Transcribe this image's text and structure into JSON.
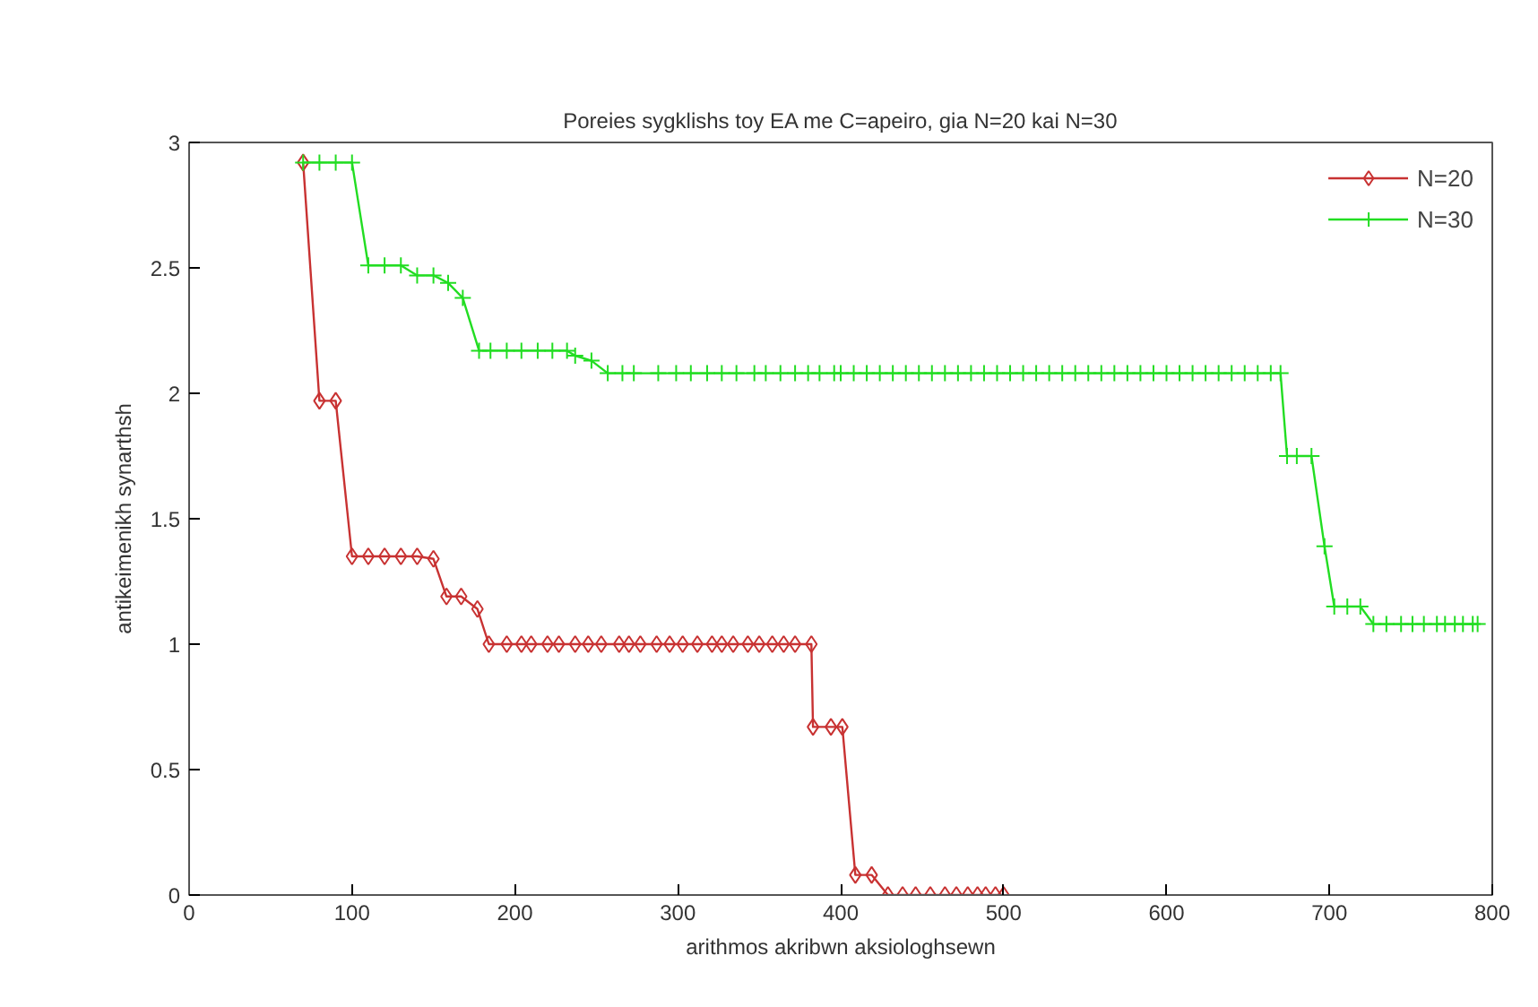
{
  "chart_data": {
    "type": "line",
    "title": "Poreies sygklishs toy EA me C=apeiro, gia N=20 kai N=30",
    "xlabel": "arithmos akribwn aksiologhsewn",
    "ylabel": "antikeimenikh synarthsh",
    "xlim": [
      0,
      800
    ],
    "ylim": [
      0,
      3
    ],
    "xticks": [
      0,
      100,
      200,
      300,
      400,
      500,
      600,
      700,
      800
    ],
    "yticks": [
      0,
      0.5,
      1,
      1.5,
      2,
      2.5,
      3
    ],
    "grid": false,
    "legend": "top right",
    "line_style": "solid",
    "series": [
      {
        "name": "N=20",
        "color": "#c83232",
        "marker": "diamond",
        "x": [
          70,
          80,
          90,
          100,
          110,
          120,
          130,
          140,
          150,
          158,
          167,
          177,
          184,
          195,
          204,
          210,
          220,
          227,
          237,
          245,
          253,
          264,
          270,
          277,
          287,
          295,
          303,
          312,
          321,
          327,
          334,
          343,
          350,
          358,
          365,
          372,
          382,
          383,
          394,
          401,
          409,
          419,
          429,
          438,
          446,
          455,
          464,
          471,
          478,
          484,
          489,
          495,
          500
        ],
        "values": [
          2.92,
          1.97,
          1.97,
          1.35,
          1.35,
          1.35,
          1.35,
          1.35,
          1.34,
          1.19,
          1.19,
          1.14,
          1.0,
          1.0,
          1.0,
          1.0,
          1.0,
          1.0,
          1.0,
          1.0,
          1.0,
          1.0,
          1.0,
          1.0,
          1.0,
          1.0,
          1.0,
          1.0,
          1.0,
          1.0,
          1.0,
          1.0,
          1.0,
          1.0,
          1.0,
          1.0,
          1.0,
          0.67,
          0.67,
          0.67,
          0.08,
          0.08,
          0,
          0,
          0,
          0,
          0,
          0,
          0,
          0,
          0,
          0,
          0
        ]
      },
      {
        "name": "N=30",
        "color": "#22dd22",
        "marker": "cross",
        "x": [
          70,
          80,
          90,
          100,
          110,
          120,
          130,
          140,
          150,
          159,
          168,
          178,
          185,
          195,
          204,
          214,
          223,
          232,
          237,
          247,
          257,
          266,
          273,
          288,
          299,
          308,
          318,
          327,
          336,
          347,
          354,
          363,
          372,
          380,
          387,
          396,
          400,
          408,
          416,
          424,
          432,
          440,
          448,
          456,
          464,
          472,
          480,
          488,
          496,
          504,
          512,
          520,
          528,
          536,
          544,
          552,
          560,
          568,
          576,
          584,
          592,
          600,
          608,
          616,
          624,
          632,
          640,
          648,
          656,
          664,
          670,
          674,
          680,
          689,
          697,
          703,
          711,
          719,
          727,
          735,
          744,
          751,
          758,
          766,
          771,
          777,
          782,
          788,
          791
        ],
        "values": [
          2.92,
          2.92,
          2.92,
          2.92,
          2.51,
          2.51,
          2.51,
          2.47,
          2.47,
          2.44,
          2.38,
          2.17,
          2.17,
          2.17,
          2.17,
          2.17,
          2.17,
          2.17,
          2.15,
          2.13,
          2.08,
          2.08,
          2.08,
          2.08,
          2.08,
          2.08,
          2.08,
          2.08,
          2.08,
          2.08,
          2.08,
          2.08,
          2.08,
          2.08,
          2.08,
          2.08,
          2.08,
          2.08,
          2.08,
          2.08,
          2.08,
          2.08,
          2.08,
          2.08,
          2.08,
          2.08,
          2.08,
          2.08,
          2.08,
          2.08,
          2.08,
          2.08,
          2.08,
          2.08,
          2.08,
          2.08,
          2.08,
          2.08,
          2.08,
          2.08,
          2.08,
          2.08,
          2.08,
          2.08,
          2.08,
          2.08,
          2.08,
          2.08,
          2.08,
          2.08,
          2.08,
          1.75,
          1.75,
          1.75,
          1.39,
          1.15,
          1.15,
          1.15,
          1.08,
          1.08,
          1.08,
          1.08,
          1.08,
          1.08,
          1.08,
          1.08,
          1.08,
          1.08,
          1.08
        ]
      }
    ]
  }
}
